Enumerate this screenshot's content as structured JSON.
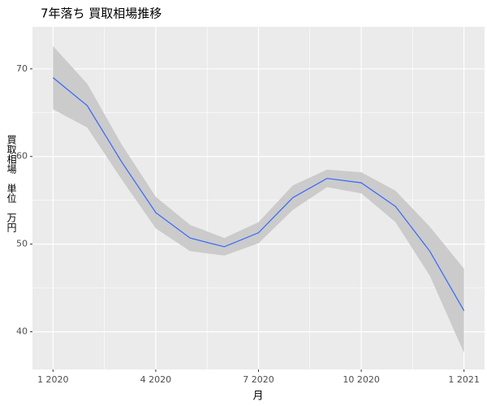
{
  "chart_data": {
    "type": "line",
    "title": "7年落ち 買取相場推移",
    "x_label": "月",
    "y_label": "買取相場　単位　万円",
    "x": [
      "2020-01",
      "2020-02",
      "2020-03",
      "2020-04",
      "2020-05",
      "2020-06",
      "2020-07",
      "2020-08",
      "2020-09",
      "2020-10",
      "2020-11",
      "2020-12",
      "2021-01"
    ],
    "series": [
      {
        "color": "#3366FF",
        "values": [
          69.0,
          65.8,
          59.4,
          53.6,
          50.7,
          49.7,
          51.3,
          55.3,
          57.5,
          57.0,
          54.3,
          49.2,
          42.4
        ]
      }
    ],
    "band": {
      "color": "#CBCBCB",
      "upper": [
        72.6,
        68.3,
        61.4,
        55.4,
        52.2,
        50.7,
        52.5,
        56.7,
        58.5,
        58.2,
        56.1,
        52.0,
        47.2
      ],
      "lower": [
        65.4,
        63.3,
        57.4,
        51.8,
        49.2,
        48.7,
        50.1,
        53.9,
        56.5,
        55.8,
        52.5,
        46.4,
        37.6
      ]
    },
    "xticks": [
      {
        "value": "2020-01",
        "label": "1 2020"
      },
      {
        "value": "2020-04",
        "label": "4 2020"
      },
      {
        "value": "2020-07",
        "label": "7 2020"
      },
      {
        "value": "2020-10",
        "label": "10 2020"
      },
      {
        "value": "2021-01",
        "label": "1 2021"
      }
    ],
    "ylim": [
      35.7,
      74.8
    ],
    "yticks": [
      40,
      50,
      60,
      70
    ],
    "grid": true
  }
}
